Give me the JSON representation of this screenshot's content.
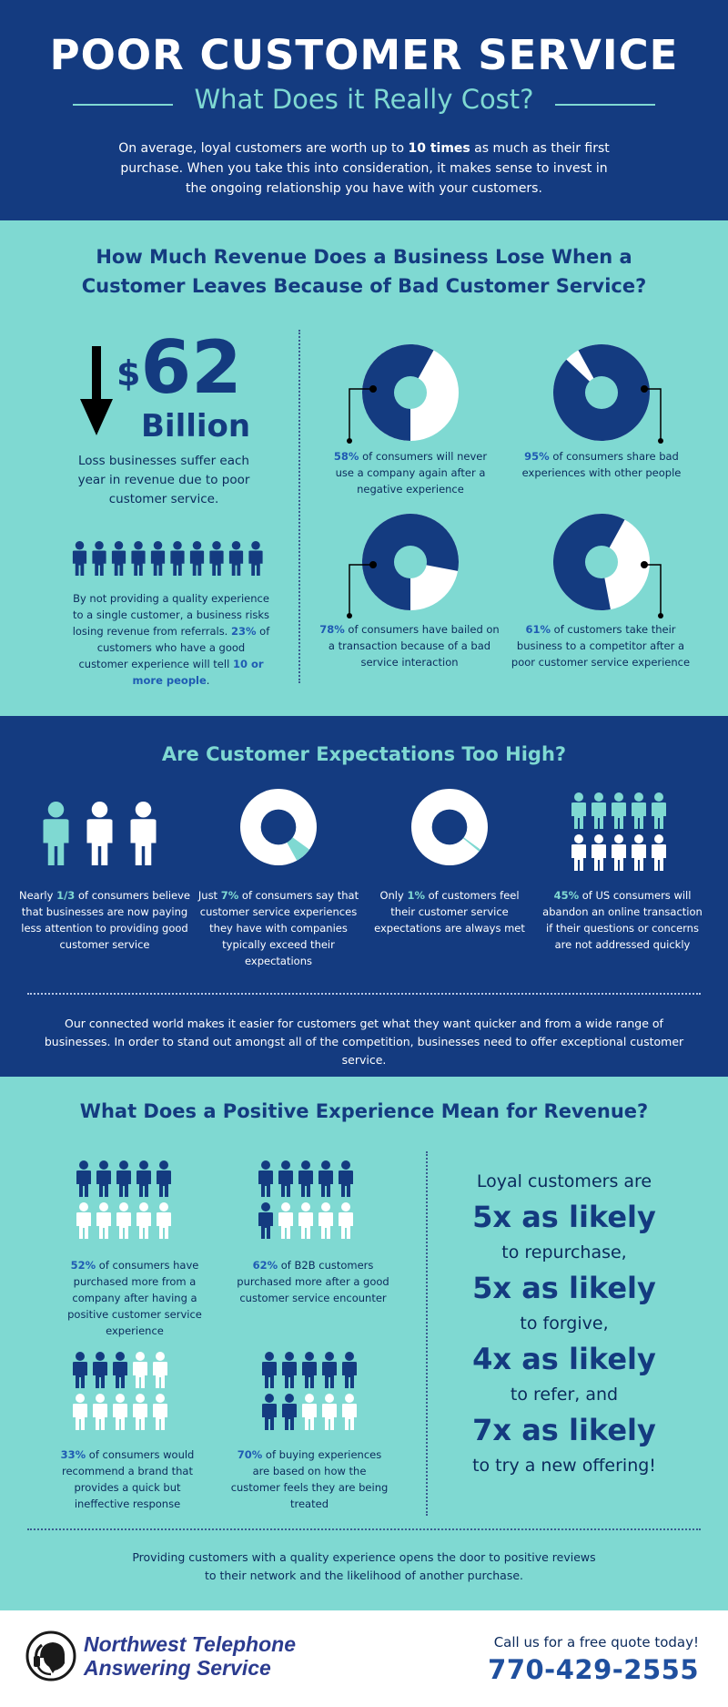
{
  "header": {
    "title": "POOR CUSTOMER SERVICE",
    "subtitle": "What Does it Really Cost?",
    "intro_part1": "On average, loyal customers are worth up to ",
    "intro_bold": "10 times",
    "intro_part2": " as much as their first purchase. When you take this into consideration, it makes sense to invest in the ongoing relationship you have with your customers."
  },
  "section1": {
    "title": "How Much Revenue Does a Business Lose When a Customer Leaves Because of Bad Customer Service?",
    "big_dollar": "$",
    "big_number": "62",
    "big_unit": "Billion",
    "loss_text": "Loss businesses suffer each year in revenue due to poor customer service.",
    "referral_text_1": "By not providing a quality experience to a single customer, a business risks losing revenue from referrals. ",
    "referral_pct": "23%",
    "referral_text_2": " of customers who have a good customer experience will tell ",
    "referral_hl": "10 or more people",
    "referral_end": ".",
    "stats": [
      {
        "pct": "58%",
        "text": " of consumers will never use a company again after a negative experience",
        "value": 58
      },
      {
        "pct": "95%",
        "text": " of consumers share bad experiences with other people",
        "value": 95
      },
      {
        "pct": "78%",
        "text": " of consumers have bailed on a transaction because of a bad service interaction",
        "value": 78
      },
      {
        "pct": "61%",
        "text": " of customers take their business to a competitor after a poor customer service experience",
        "value": 61
      }
    ]
  },
  "section2": {
    "title": "Are Customer Expectations Too High?",
    "items": [
      {
        "pre": "Nearly ",
        "hl": "1/3",
        "post": " of consumers believe that businesses are now paying less attention to providing good customer service"
      },
      {
        "pre": "Just ",
        "hl": "7%",
        "post": " of consumers say that customer service experiences they have with companies typically exceed their expectations",
        "value": 7
      },
      {
        "pre": "Only ",
        "hl": "1%",
        "post": " of customers feel their customer service expectations are always met",
        "value": 1
      },
      {
        "pre": "",
        "hl": "45%",
        "post": " of US consumers will abandon an online transaction if their questions or concerns are not addressed quickly"
      }
    ],
    "note": "Our connected world makes it easier for customers get what they want quicker and from a wide range of businesses. In order to stand out amongst all of the competition, businesses need to offer exceptional customer service."
  },
  "section3": {
    "title": "What Does a Positive Experience Mean for Revenue?",
    "items": [
      {
        "hl": "52%",
        "post": " of consumers have purchased more from a company after having a positive customer service experience"
      },
      {
        "hl": "62%",
        "post": " of B2B customers purchased more after a good customer service encounter"
      },
      {
        "hl": "33%",
        "post": " of consumers would recommend a brand that provides a quick but ineffective response"
      },
      {
        "hl": "70%",
        "post": " of buying experiences are based on how the customer feels they are being treated"
      }
    ],
    "likely": {
      "intro": "Loyal customers are",
      "l1": "5x as likely",
      "t1": "to repurchase,",
      "l2": "5x as likely",
      "t2": "to forgive,",
      "l3": "4x as likely",
      "t3": "to refer, and",
      "l4": "7x as likely",
      "t4": "to try a new offering!"
    },
    "note": "Providing customers with a quality experience opens the door to positive reviews to their network and the likelihood of another purchase."
  },
  "footer": {
    "logo_line1": "Northwest Telephone",
    "logo_line2": "Answering Service",
    "call": "Call us for a free quote today!",
    "phone": "770-429-2555"
  },
  "colors": {
    "navy": "#143b80",
    "teal": "#7fd9d2",
    "white": "#ffffff"
  }
}
